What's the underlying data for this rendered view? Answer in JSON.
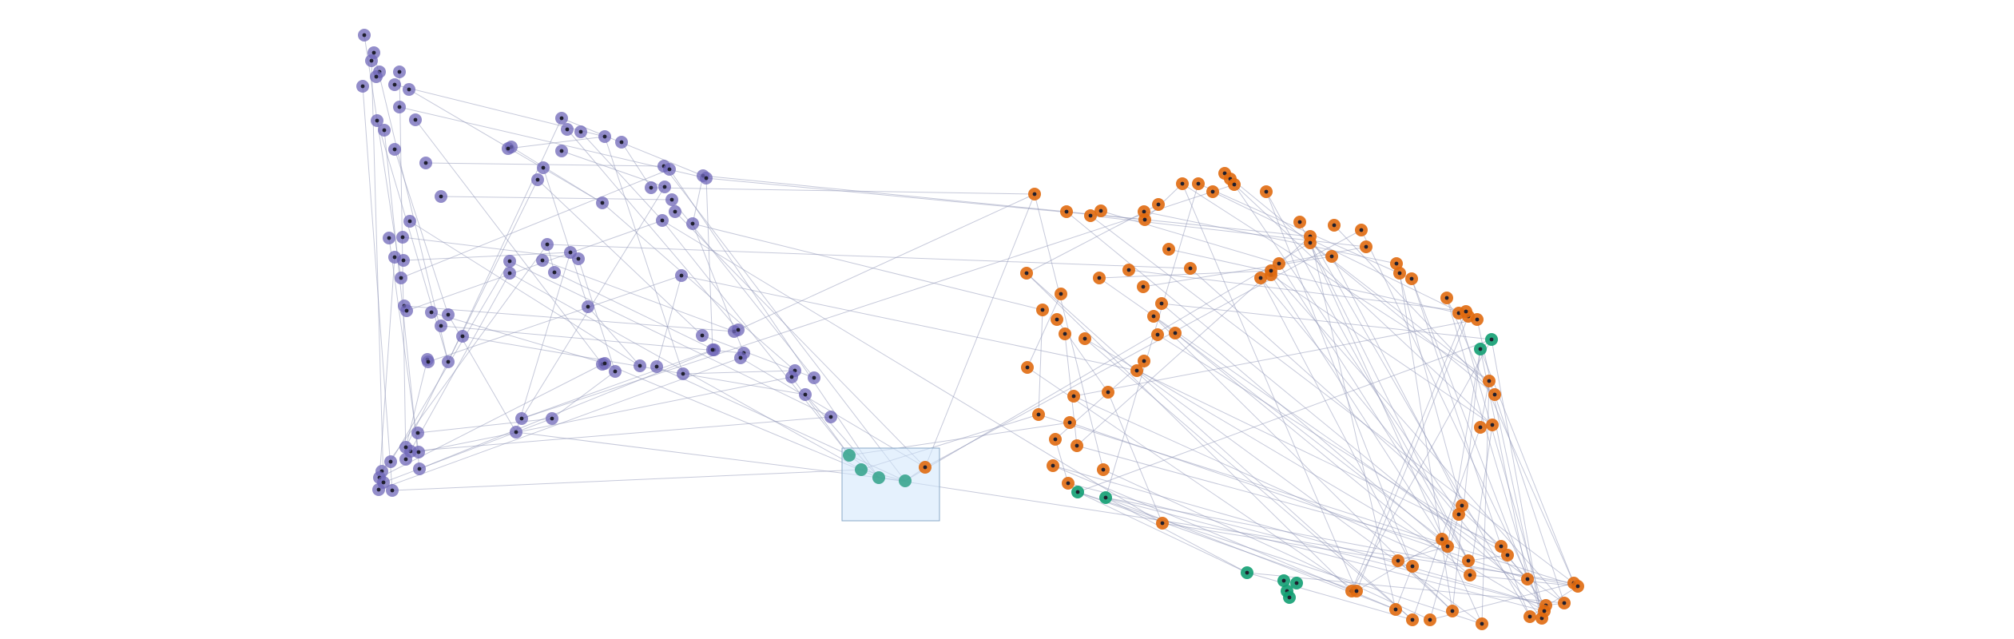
{
  "graph": {
    "colors": {
      "cluster_a": "#6f67b8",
      "cluster_b": "#e06a10",
      "highlight": "#129e72",
      "selected": "#3aa58f",
      "edge": "#8d93b5",
      "selection_fill": "#cfe5fb"
    },
    "node_count": 176,
    "selection_visible": true
  }
}
